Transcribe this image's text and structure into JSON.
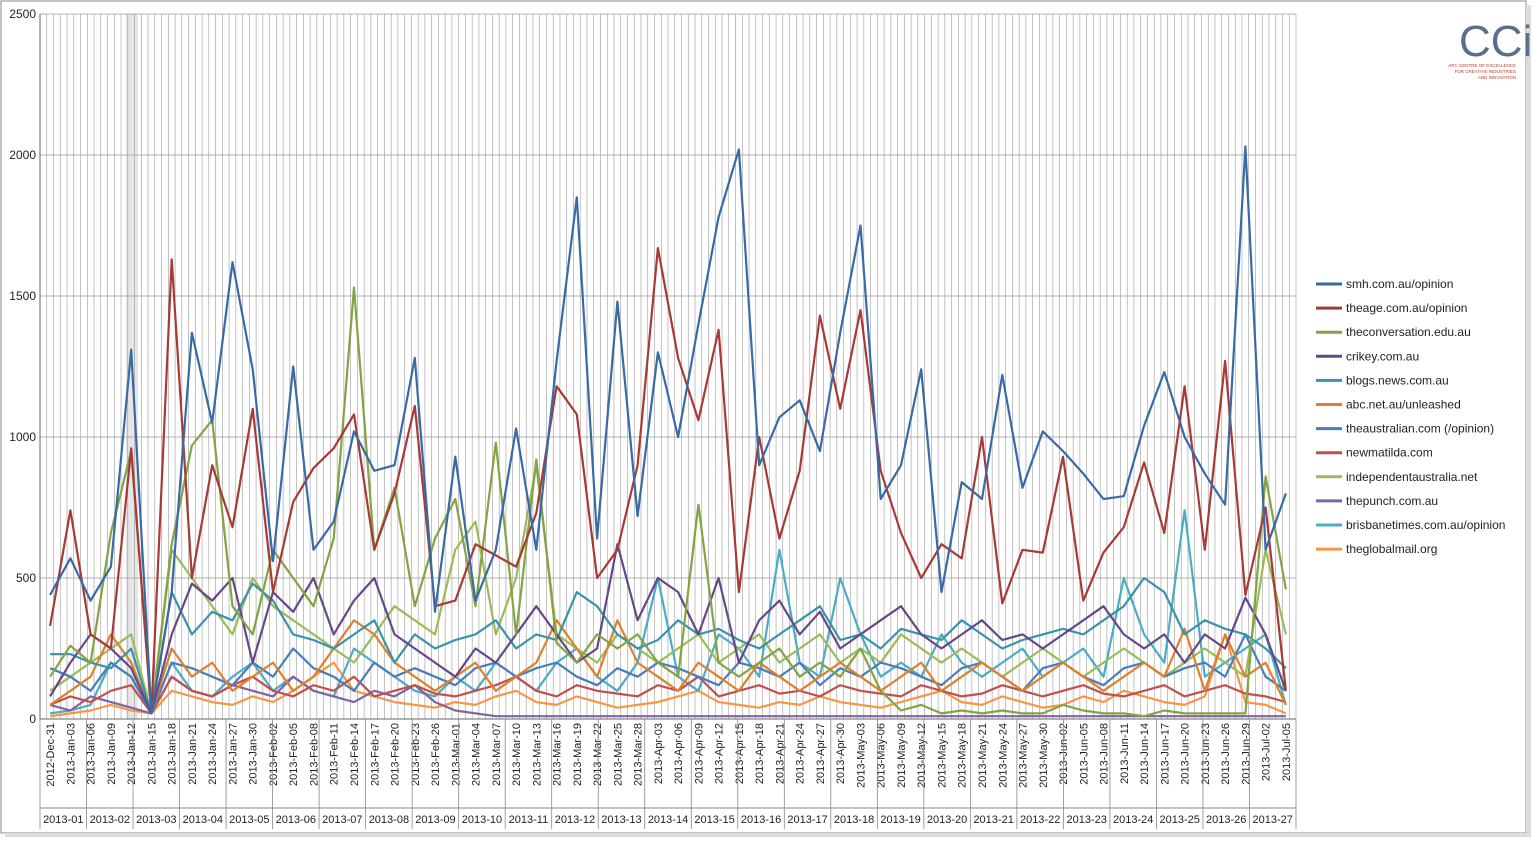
{
  "chart_data": {
    "type": "line",
    "categories": [
      "2012-Dec-31",
      "2013-Jan-03",
      "2013-Jan-06",
      "2013-Jan-09",
      "2013-Jan-12",
      "2013-Jan-15",
      "2013-Jan-18",
      "2013-Jan-21",
      "2013-Jan-24",
      "2013-Jan-27",
      "2013-Jan-30",
      "2013-Feb-02",
      "2013-Feb-05",
      "2013-Feb-08",
      "2013-Feb-11",
      "2013-Feb-14",
      "2013-Feb-17",
      "2013-Feb-20",
      "2013-Feb-23",
      "2013-Feb-26",
      "2013-Mar-01",
      "2013-Mar-04",
      "2013-Mar-07",
      "2013-Mar-10",
      "2013-Mar-13",
      "2013-Mar-16",
      "2013-Mar-19",
      "2013-Mar-22",
      "2013-Mar-25",
      "2013-Mar-28",
      "2013-Apr-03",
      "2013-Apr-06",
      "2013-Apr-09",
      "2013-Apr-12",
      "2013-Apr-15",
      "2013-Apr-18",
      "2013-Apr-21",
      "2013-Apr-24",
      "2013-Apr-27",
      "2013-Apr-30",
      "2013-May-03",
      "2013-May-06",
      "2013-May-09",
      "2013-May-12",
      "2013-May-15",
      "2013-May-18",
      "2013-May-21",
      "2013-May-24",
      "2013-May-27",
      "2013-May-30",
      "2013-Jun-02",
      "2013-Jun-05",
      "2013-Jun-08",
      "2013-Jun-11",
      "2013-Jun-14",
      "2013-Jun-17",
      "2013-Jun-20",
      "2013-Jun-23",
      "2013-Jun-26",
      "2013-Jun-29",
      "2013-Jul-02",
      "2013-Jul-05"
    ],
    "weeks": [
      "2013-01",
      "2013-02",
      "2013-03",
      "2013-04",
      "2013-05",
      "2013-06",
      "2013-07",
      "2013-08",
      "2013-09",
      "2013-10",
      "2013-11",
      "2013-12",
      "2013-13",
      "2013-14",
      "2013-15",
      "2013-16",
      "2013-17",
      "2013-18",
      "2013-19",
      "2013-20",
      "2013-21",
      "2013-22",
      "2013-23",
      "2013-24",
      "2013-25",
      "2013-26",
      "2013-27"
    ],
    "ylim": [
      0,
      2500
    ],
    "yticks": [
      0,
      500,
      1000,
      1500,
      2000,
      2500
    ],
    "grid": true,
    "series": [
      {
        "name": "smh.com.au/opinion",
        "color": "#3a6aa6",
        "values": [
          440,
          570,
          420,
          540,
          1310,
          20,
          450,
          1370,
          1050,
          1620,
          1240,
          560,
          1250,
          600,
          700,
          1020,
          880,
          900,
          1280,
          380,
          930,
          420,
          600,
          1030,
          600,
          1270,
          1850,
          640,
          1480,
          720,
          1300,
          1000,
          1400,
          1780,
          2020,
          900,
          1070,
          1130,
          950,
          1370,
          1750,
          780,
          900,
          1240,
          450,
          840,
          780,
          1220,
          820,
          1020,
          950,
          870,
          780,
          790,
          1040,
          1230,
          1000,
          870,
          760,
          2030,
          600,
          800
        ]
      },
      {
        "name": "theage.com.au/opinion",
        "color": "#a83a36",
        "values": [
          330,
          740,
          300,
          250,
          960,
          20,
          1630,
          500,
          900,
          680,
          1100,
          450,
          770,
          890,
          960,
          1080,
          600,
          800,
          1110,
          400,
          420,
          620,
          580,
          540,
          730,
          1180,
          1080,
          500,
          600,
          900,
          1670,
          1280,
          1060,
          1380,
          450,
          1000,
          640,
          880,
          1430,
          1100,
          1450,
          880,
          660,
          500,
          620,
          570,
          1000,
          410,
          600,
          590,
          930,
          420,
          590,
          680,
          910,
          660,
          1180,
          600,
          1270,
          440,
          750,
          100
        ]
      },
      {
        "name": "theconversation.edu.au",
        "color": "#84a343",
        "values": [
          150,
          260,
          200,
          660,
          950,
          20,
          620,
          970,
          1060,
          400,
          300,
          600,
          500,
          400,
          640,
          1530,
          600,
          820,
          400,
          640,
          780,
          400,
          980,
          300,
          920,
          270,
          200,
          300,
          250,
          300,
          200,
          150,
          760,
          200,
          150,
          200,
          250,
          150,
          200,
          150,
          250,
          100,
          30,
          50,
          20,
          30,
          20,
          30,
          20,
          20,
          50,
          30,
          20,
          20,
          10,
          30,
          20,
          20,
          20,
          20,
          860,
          460
        ]
      },
      {
        "name": "crikey.com.au",
        "color": "#664788",
        "values": [
          80,
          200,
          300,
          250,
          180,
          20,
          300,
          480,
          420,
          500,
          200,
          450,
          380,
          500,
          300,
          420,
          500,
          300,
          250,
          200,
          150,
          250,
          200,
          300,
          400,
          300,
          200,
          250,
          620,
          350,
          500,
          450,
          300,
          500,
          200,
          350,
          420,
          300,
          380,
          250,
          300,
          350,
          400,
          300,
          250,
          300,
          350,
          280,
          300,
          250,
          300,
          350,
          400,
          300,
          250,
          300,
          200,
          300,
          250,
          430,
          300,
          100
        ]
      },
      {
        "name": "blogs.news.com.au",
        "color": "#3893ab",
        "values": [
          230,
          230,
          200,
          180,
          250,
          20,
          450,
          300,
          380,
          350,
          480,
          420,
          300,
          280,
          250,
          300,
          350,
          200,
          300,
          250,
          280,
          300,
          350,
          250,
          300,
          280,
          450,
          400,
          300,
          250,
          280,
          350,
          300,
          320,
          280,
          250,
          300,
          350,
          400,
          280,
          300,
          250,
          320,
          300,
          280,
          350,
          300,
          250,
          280,
          300,
          320,
          300,
          350,
          400,
          500,
          450,
          300,
          350,
          320,
          300,
          250,
          180
        ]
      },
      {
        "name": "abc.net.au/unleashed",
        "color": "#e0802c",
        "values": [
          50,
          100,
          150,
          300,
          200,
          20,
          250,
          150,
          200,
          100,
          150,
          200,
          100,
          150,
          250,
          350,
          300,
          200,
          150,
          100,
          150,
          200,
          100,
          150,
          200,
          350,
          250,
          150,
          350,
          200,
          150,
          100,
          200,
          150,
          100,
          200,
          150,
          100,
          150,
          200,
          150,
          100,
          150,
          200,
          100,
          150,
          200,
          150,
          100,
          150,
          200,
          150,
          100,
          150,
          200,
          150,
          320,
          100,
          300,
          150,
          200,
          50
        ]
      },
      {
        "name": "theaustralian.com (/opinion)",
        "color": "#4a7dbb",
        "values": [
          180,
          150,
          100,
          200,
          150,
          20,
          200,
          180,
          150,
          120,
          200,
          150,
          250,
          180,
          150,
          100,
          200,
          150,
          180,
          150,
          120,
          180,
          200,
          150,
          180,
          200,
          150,
          120,
          180,
          150,
          200,
          180,
          150,
          120,
          200,
          180,
          150,
          200,
          120,
          180,
          150,
          200,
          180,
          150,
          120,
          180,
          200,
          150,
          100,
          180,
          200,
          150,
          120,
          180,
          200,
          150,
          180,
          200,
          150,
          300,
          150,
          100
        ]
      },
      {
        "name": "newmatilda.com",
        "color": "#c0504d",
        "values": [
          50,
          80,
          60,
          100,
          120,
          20,
          150,
          100,
          80,
          120,
          150,
          100,
          80,
          120,
          100,
          150,
          80,
          100,
          120,
          90,
          80,
          100,
          120,
          150,
          100,
          80,
          120,
          100,
          90,
          80,
          120,
          100,
          150,
          80,
          100,
          120,
          90,
          100,
          80,
          120,
          100,
          90,
          80,
          120,
          100,
          80,
          90,
          120,
          100,
          80,
          100,
          120,
          90,
          80,
          100,
          120,
          80,
          100,
          120,
          90,
          80,
          60
        ]
      },
      {
        "name": "independentaustralia.net",
        "color": "#9bbb59",
        "values": [
          100,
          150,
          200,
          250,
          300,
          20,
          600,
          500,
          400,
          300,
          500,
          400,
          350,
          300,
          250,
          200,
          300,
          400,
          350,
          300,
          600,
          700,
          300,
          500,
          900,
          300,
          250,
          200,
          300,
          250,
          200,
          250,
          300,
          200,
          250,
          300,
          200,
          250,
          300,
          200,
          250,
          200,
          300,
          250,
          200,
          250,
          200,
          150,
          200,
          250,
          200,
          150,
          200,
          250,
          200,
          150,
          200,
          250,
          200,
          150,
          600,
          300
        ]
      },
      {
        "name": "thepunch.com.au",
        "color": "#8064a2",
        "values": [
          50,
          30,
          80,
          60,
          40,
          20,
          150,
          100,
          80,
          120,
          100,
          80,
          150,
          100,
          80,
          60,
          100,
          80,
          120,
          60,
          30,
          20,
          10,
          10,
          10,
          10,
          10,
          10,
          10,
          10,
          10,
          10,
          10,
          10,
          10,
          10,
          10,
          10,
          10,
          10,
          10,
          10,
          10,
          10,
          10,
          10,
          10,
          10,
          10,
          10,
          10,
          10,
          10,
          10,
          10,
          10,
          10,
          10,
          10,
          10,
          10,
          10
        ]
      },
      {
        "name": "brisbanetimes.com.au/opinion",
        "color": "#4bacc6",
        "values": [
          20,
          30,
          50,
          200,
          150,
          20,
          200,
          100,
          80,
          150,
          200,
          100,
          150,
          100,
          80,
          250,
          200,
          150,
          100,
          80,
          150,
          100,
          200,
          150,
          100,
          200,
          250,
          150,
          100,
          200,
          500,
          150,
          100,
          300,
          250,
          150,
          600,
          200,
          150,
          500,
          300,
          150,
          200,
          150,
          300,
          200,
          150,
          200,
          250,
          150,
          200,
          250,
          150,
          500,
          300,
          200,
          740,
          150,
          200,
          250,
          300,
          50
        ]
      },
      {
        "name": "theglobalmail.org",
        "color": "#f79646",
        "values": [
          10,
          20,
          30,
          50,
          30,
          20,
          100,
          80,
          60,
          50,
          80,
          60,
          100,
          150,
          200,
          100,
          80,
          60,
          50,
          40,
          60,
          50,
          80,
          100,
          60,
          50,
          80,
          60,
          40,
          50,
          60,
          80,
          100,
          60,
          50,
          40,
          60,
          50,
          80,
          60,
          50,
          40,
          60,
          80,
          100,
          60,
          50,
          80,
          60,
          40,
          50,
          80,
          60,
          100,
          80,
          60,
          50,
          80,
          300,
          60,
          50,
          20
        ]
      }
    ]
  },
  "logo": {
    "mark": "CCi",
    "caption": [
      "ARC CENTRE OF EXCELLENCE",
      "FOR CREATIVE  INDUSTRIES",
      "AND INNOVATION"
    ]
  }
}
